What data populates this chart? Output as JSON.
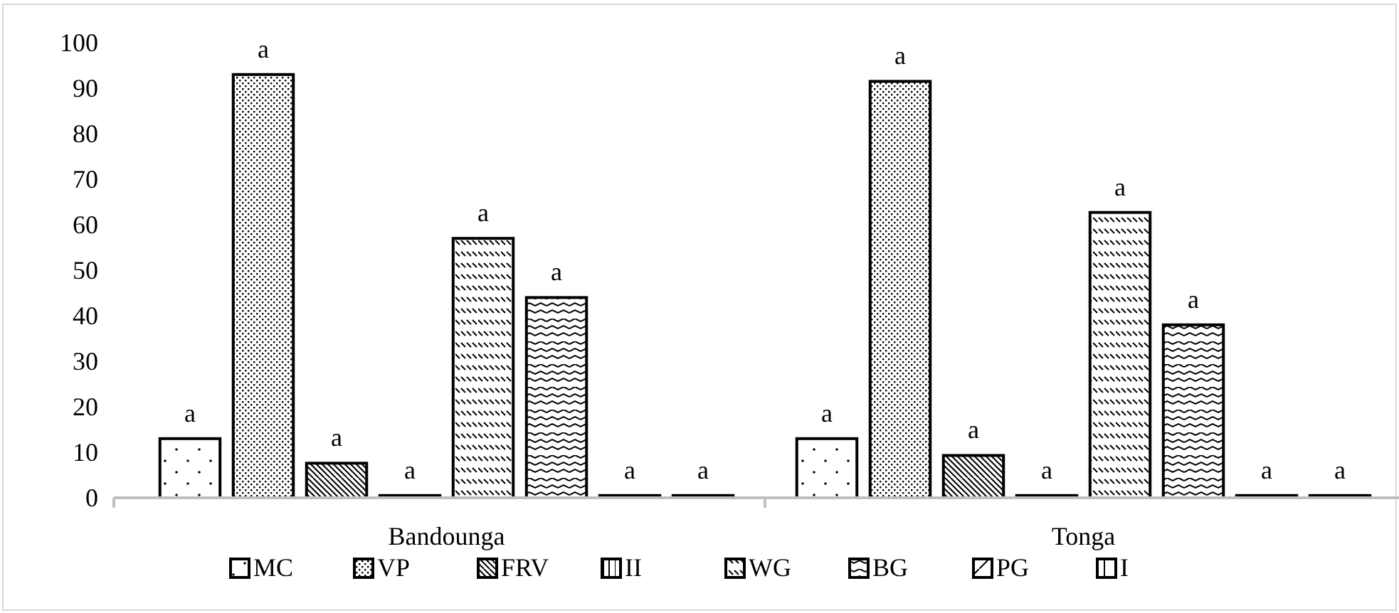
{
  "chart_data": {
    "type": "bar",
    "categories": [
      "Bandounga",
      "Tonga"
    ],
    "series": [
      {
        "name": "MC",
        "color": "#000000",
        "values": [
          13,
          13
        ],
        "value_labels": [
          "a",
          "a"
        ]
      },
      {
        "name": "VP",
        "color": "#000000",
        "values": [
          93,
          91.5
        ],
        "value_labels": [
          "a",
          "a"
        ]
      },
      {
        "name": "FRV",
        "color": "#000000",
        "values": [
          7.6,
          9.3
        ],
        "value_labels": [
          "a",
          "a"
        ]
      },
      {
        "name": "II",
        "color": "#000000",
        "values": [
          0.5,
          0.5
        ],
        "value_labels": [
          "a",
          "a"
        ]
      },
      {
        "name": "WG",
        "color": "#000000",
        "values": [
          57,
          62.7
        ],
        "value_labels": [
          "a",
          "a"
        ]
      },
      {
        "name": "BG",
        "color": "#000000",
        "values": [
          44,
          38
        ],
        "value_labels": [
          "a",
          "a"
        ]
      },
      {
        "name": "PG",
        "color": "#000000",
        "values": [
          0.5,
          0.5
        ],
        "value_labels": [
          "a",
          "a"
        ]
      },
      {
        "name": "I",
        "color": "#000000",
        "values": [
          0.5,
          0.5
        ],
        "value_labels": [
          "a",
          "a"
        ]
      }
    ],
    "ylim": [
      0,
      100
    ],
    "yticks": [
      0,
      10,
      20,
      30,
      40,
      50,
      60,
      70,
      80,
      90,
      100
    ],
    "grid": false,
    "legend": "bottom"
  }
}
